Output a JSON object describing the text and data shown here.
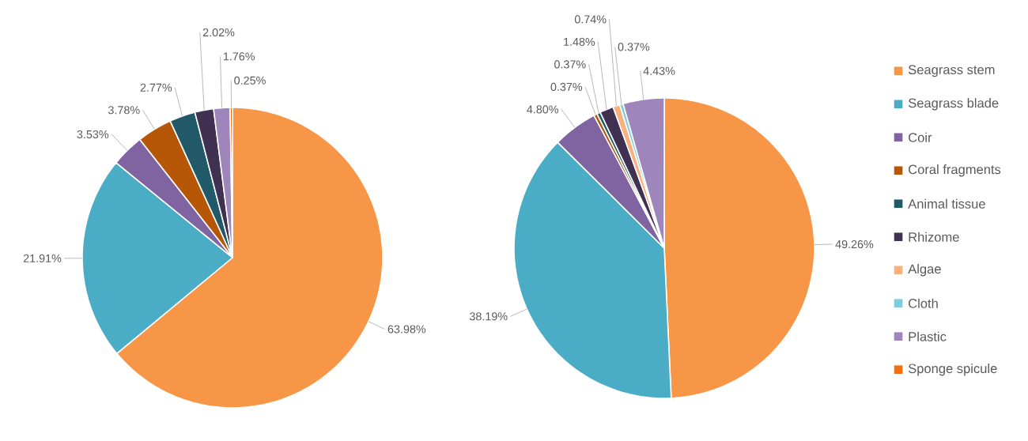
{
  "chart_data": [
    {
      "type": "pie",
      "categories": [
        null,
        null,
        null,
        null,
        null,
        null,
        null,
        null,
        null,
        null
      ],
      "values": [
        63.98,
        21.91,
        3.53,
        3.78,
        2.77,
        2.02,
        null,
        null,
        1.76,
        0.25
      ],
      "value_labels": [
        "63.98%",
        "21.91%",
        "3.53%",
        "3.78%",
        "2.77%",
        "2.02%",
        null,
        null,
        "1.76%",
        "0.25%"
      ],
      "colors": [
        "#f79646",
        "#4bacc6",
        "#8064a2",
        "#b65708",
        "#215968",
        "#403152",
        "#fab07c",
        "#7ccde0",
        "#9e86bc",
        "#f46f0e"
      ]
    },
    {
      "type": "pie",
      "categories": [
        "Seagrass stem",
        "Seagrass blade",
        "Coir",
        "Coral fragments",
        "Animal tissue",
        "Rhizome",
        "Algae",
        "Cloth",
        "Plastic",
        "Sponge spicule"
      ],
      "values": [
        49.26,
        38.19,
        4.8,
        0.37,
        0.37,
        1.48,
        0.74,
        0.37,
        4.43,
        null
      ],
      "value_labels": [
        "49.26%",
        "38.19%",
        "4.80%",
        "0.37%",
        "0.37%",
        "1.48%",
        "0.74%",
        "0.37%",
        "4.43%",
        null
      ],
      "colors": [
        "#f79646",
        "#4bacc6",
        "#8064a2",
        "#b65708",
        "#215968",
        "#403152",
        "#fab07c",
        "#7ccde0",
        "#9e86bc",
        "#f46f0e"
      ],
      "legend": "right"
    }
  ]
}
